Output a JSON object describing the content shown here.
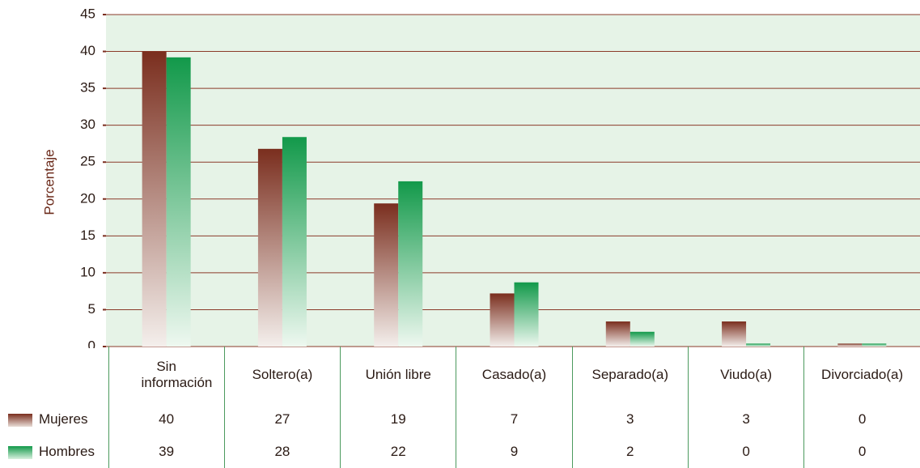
{
  "chart_data": {
    "type": "bar",
    "ylabel": "Porcentaje",
    "categories": [
      "Sin información",
      "Soltero(a)",
      "Unión libre",
      "Casado(a)",
      "Separado(a)",
      "Viudo(a)",
      "Divorciado(a)"
    ],
    "series": [
      {
        "name": "Mujeres",
        "color": "#7a2e1e",
        "values": [
          40,
          26.8,
          19.4,
          7.2,
          3.4,
          3.4,
          0.4
        ],
        "value_labels": [
          "40",
          "27",
          "19",
          "7",
          "3",
          "3",
          "0"
        ]
      },
      {
        "name": "Hombres",
        "color": "#12994a",
        "values": [
          39.2,
          28.4,
          22.4,
          8.7,
          2.0,
          0.4,
          0.4
        ],
        "value_labels": [
          "39",
          "28",
          "22",
          "9",
          "2",
          "0",
          "0"
        ]
      }
    ],
    "ylim": [
      0,
      45
    ],
    "yticks": [
      0,
      5,
      10,
      15,
      20,
      25,
      30,
      35,
      40,
      45
    ],
    "grid": true
  }
}
